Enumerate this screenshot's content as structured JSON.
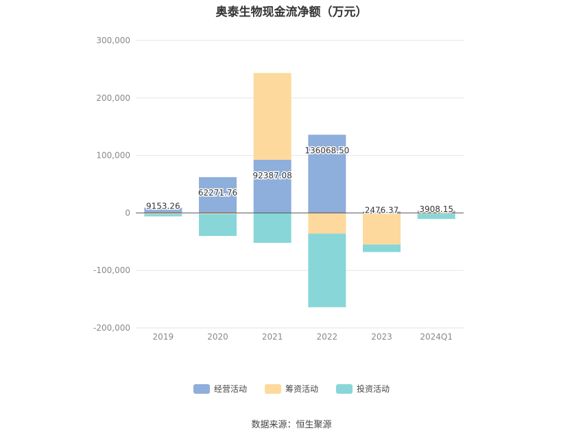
{
  "chart_data": {
    "type": "bar",
    "stacked": true,
    "title": "奥泰生物现金流净额（万元）",
    "categories": [
      "2019",
      "2020",
      "2021",
      "2022",
      "2023",
      "2024Q1"
    ],
    "series": [
      {
        "name": "经营活动",
        "color": "#8eaedb",
        "values": [
          9153.26,
          62271.76,
          92387.08,
          136068.5,
          2476.37,
          3908.15
        ]
      },
      {
        "name": "筹资活动",
        "color": "#fdd99d",
        "values": [
          -2000,
          -2000,
          151000,
          -36000,
          -55000,
          -1500
        ]
      },
      {
        "name": "投资活动",
        "color": "#88d6d8",
        "values": [
          -4000,
          -38000,
          -52000,
          -128000,
          -13000,
          -9000
        ]
      }
    ],
    "data_labels": [
      "9153.26",
      "62271.76",
      "92387.08",
      "136068.50",
      "2476.37",
      "3908.15"
    ],
    "y_ticks": [
      300000,
      200000,
      100000,
      0,
      -100000,
      -200000
    ],
    "y_tick_labels": [
      "300,000",
      "200,000",
      "100,000",
      "0",
      "-100,000",
      "-200,000"
    ],
    "ylim": [
      -200000,
      300000
    ],
    "grid": true,
    "legend_position": "bottom"
  },
  "source_text": "数据来源：恒生聚源"
}
